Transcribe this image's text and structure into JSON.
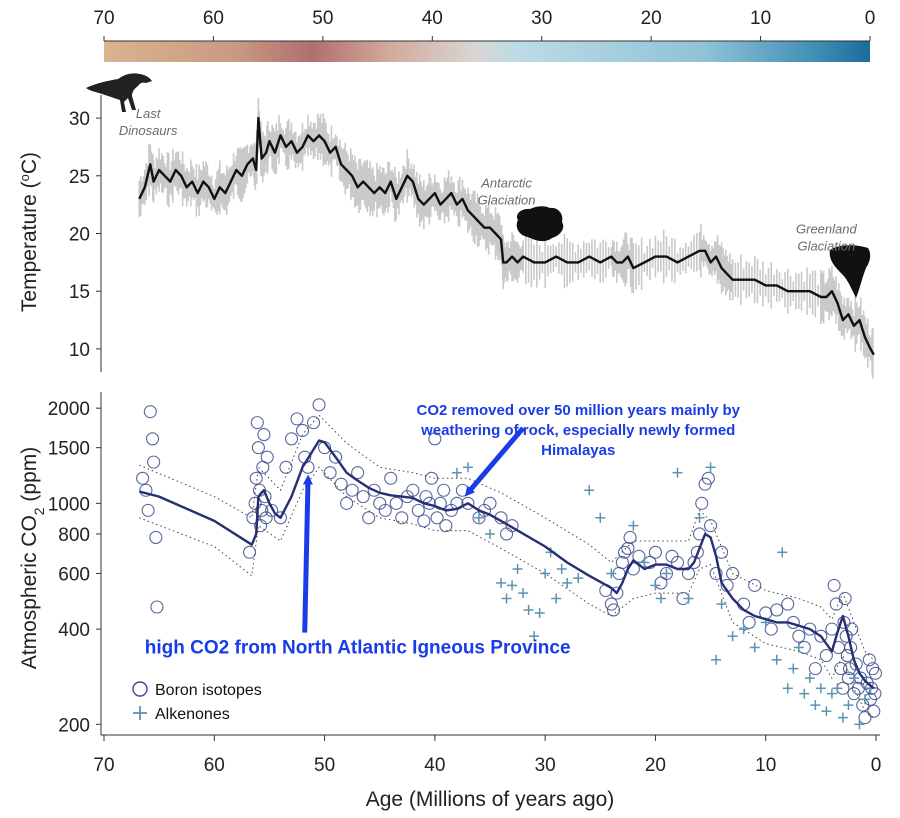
{
  "colorbar": {
    "ticks": [
      "70",
      "60",
      "50",
      "40",
      "30",
      "20",
      "10",
      "0"
    ],
    "tick_values": [
      70,
      60,
      50,
      40,
      30,
      20,
      10,
      0
    ],
    "gradient": [
      {
        "age": 70,
        "color": "#d9b48f"
      },
      {
        "age": 58,
        "color": "#c99a82"
      },
      {
        "age": 51,
        "color": "#b06f6f"
      },
      {
        "age": 44,
        "color": "#d3a99a"
      },
      {
        "age": 36,
        "color": "#d8d6d4"
      },
      {
        "age": 32,
        "color": "#bcdbe6"
      },
      {
        "age": 15,
        "color": "#8fc2d6"
      },
      {
        "age": 5,
        "color": "#3f8fb6"
      },
      {
        "age": 0,
        "color": "#1d6b9a"
      }
    ]
  },
  "chart_data": [
    {
      "type": "line",
      "ylabel": "Temperature (°C)",
      "ylabel_main": "Temperature (",
      "ylabel_sup": "o",
      "ylabel_tail": "C)",
      "xlim": [
        70,
        0
      ],
      "ylim": [
        8,
        32
      ],
      "yticks": [
        10,
        15,
        20,
        25,
        30
      ],
      "ytick_labels": [
        "10",
        "15",
        "20",
        "25",
        "30"
      ],
      "colors": {
        "line": "#111111",
        "band": "#c9c9c9"
      },
      "series": [
        {
          "x": [
            66.8,
            66.3,
            65.8,
            65.5,
            65.0,
            64.5,
            64.0,
            63.5,
            63.0,
            62.5,
            62.0,
            61.5,
            61.0,
            60.5,
            60.0,
            59.5,
            59.0,
            58.5,
            58.0,
            57.5,
            57.0,
            56.5,
            56.2,
            56.0,
            55.7,
            55.3,
            55.0,
            54.5,
            54.0,
            53.5,
            53.0,
            52.5,
            52.0,
            51.5,
            51.0,
            50.5,
            50.0,
            49.5,
            49.0,
            48.5,
            48.0,
            47.5,
            47.0,
            46.5,
            46.0,
            45.5,
            45.0,
            44.5,
            44.0,
            43.5,
            43.0,
            42.5,
            42.0,
            41.5,
            41.0,
            40.5,
            40.0,
            39.5,
            39.0,
            38.5,
            38.0,
            37.5,
            37.0,
            36.5,
            36.0,
            35.5,
            35.0,
            34.5,
            34.0,
            33.8,
            33.5,
            33.0,
            32.5,
            32.0,
            31.0,
            30.0,
            29.0,
            28.0,
            27.0,
            26.0,
            25.0,
            24.0,
            23.5,
            23.0,
            22.5,
            22.0,
            21.0,
            20.0,
            19.0,
            18.0,
            17.0,
            16.0,
            15.5,
            15.0,
            14.5,
            14.0,
            13.5,
            13.0,
            12.0,
            11.0,
            10.0,
            9.0,
            8.0,
            7.0,
            6.0,
            5.0,
            4.5,
            4.0,
            3.5,
            3.0,
            2.5,
            2.0,
            1.5,
            1.0,
            0.5,
            0.2
          ],
          "y": [
            23.0,
            24.0,
            26.0,
            24.5,
            25.5,
            25.0,
            24.5,
            25.5,
            25.0,
            24.0,
            24.5,
            23.5,
            24.5,
            24.0,
            23.0,
            24.0,
            23.5,
            24.5,
            25.5,
            25.0,
            26.0,
            26.5,
            25.5,
            30.0,
            26.5,
            27.0,
            28.0,
            27.0,
            28.5,
            27.5,
            28.0,
            27.0,
            27.5,
            28.5,
            28.0,
            28.5,
            28.0,
            27.0,
            27.5,
            26.0,
            25.5,
            25.0,
            24.0,
            24.5,
            24.0,
            23.5,
            24.0,
            23.5,
            24.5,
            23.0,
            24.0,
            25.0,
            24.5,
            23.0,
            22.5,
            23.0,
            23.5,
            22.5,
            23.0,
            23.5,
            22.5,
            23.0,
            22.0,
            21.5,
            21.0,
            20.5,
            20.5,
            20.0,
            19.5,
            17.5,
            17.5,
            18.0,
            17.5,
            18.0,
            17.5,
            17.5,
            18.0,
            17.5,
            17.5,
            18.0,
            17.5,
            18.0,
            17.5,
            17.5,
            18.0,
            17.0,
            17.5,
            18.0,
            18.0,
            17.5,
            18.0,
            18.5,
            18.5,
            17.5,
            18.0,
            17.0,
            16.5,
            16.0,
            16.0,
            16.0,
            15.5,
            15.5,
            15.0,
            15.0,
            15.0,
            14.5,
            14.5,
            15.0,
            14.0,
            12.5,
            13.0,
            12.0,
            12.5,
            11.0,
            10.0,
            9.5
          ]
        }
      ],
      "annotations": [
        {
          "lines": [
            "Last",
            "Dinosaurs"
          ],
          "x": 66.0,
          "y": 30.0
        },
        {
          "lines": [
            "Antarctic",
            "Glaciation"
          ],
          "x": 33.5,
          "y": 24.0
        },
        {
          "lines": [
            "Greenland",
            "Glaciation"
          ],
          "x": 4.5,
          "y": 20.0
        }
      ]
    },
    {
      "type": "scatter",
      "ylabel_main": "Atmospheric CO",
      "ylabel_sub": "2",
      "ylabel_tail": " (ppm)",
      "xlabel": "Age (Millions of years ago)",
      "xlim": [
        70,
        0
      ],
      "ylim": [
        185,
        2250
      ],
      "yscale": "log",
      "xticks": [
        70,
        60,
        50,
        40,
        30,
        20,
        10,
        0
      ],
      "xtick_labels": [
        "70",
        "60",
        "50",
        "40",
        "30",
        "20",
        "10",
        "0"
      ],
      "yticks": [
        200,
        400,
        600,
        800,
        1000,
        1500,
        2000
      ],
      "ytick_labels": [
        "200",
        "400",
        "600",
        "800",
        "1000",
        "1500",
        "2000"
      ],
      "colors": {
        "boron": "#3a4a8c",
        "alkenones": "#5b93b0",
        "fit": "#262f73",
        "band": "#444444"
      },
      "series": [
        {
          "name": "Boron isotopes",
          "marker": "circle",
          "x": [
            66.5,
            66.2,
            66.0,
            65.8,
            65.6,
            65.5,
            65.3,
            65.2,
            56.8,
            56.5,
            56.3,
            56.2,
            56.1,
            56.0,
            55.9,
            55.8,
            55.7,
            55.6,
            55.5,
            55.4,
            55.3,
            55.2,
            54.8,
            54.0,
            53.5,
            53.0,
            52.5,
            52.0,
            51.8,
            51.5,
            51.0,
            50.5,
            50.0,
            49.5,
            49.0,
            48.5,
            48.0,
            47.5,
            47.0,
            46.5,
            46.0,
            45.5,
            45.0,
            44.5,
            44.0,
            43.5,
            43.0,
            42.5,
            42.0,
            41.5,
            41.0,
            40.8,
            40.5,
            40.3,
            40.0,
            39.8,
            39.5,
            39.2,
            39.0,
            38.5,
            38.0,
            37.5,
            37.0,
            36.0,
            35.5,
            35.0,
            34.0,
            33.5,
            33.0,
            24.5,
            24.0,
            23.8,
            23.5,
            23.3,
            23.0,
            22.8,
            22.5,
            22.3,
            22.0,
            21.5,
            20.5,
            20.0,
            19.5,
            19.0,
            18.5,
            18.0,
            17.5,
            17.0,
            16.5,
            16.2,
            16.0,
            15.8,
            15.5,
            15.2,
            15.0,
            14.5,
            14.0,
            13.5,
            13.0,
            12.0,
            11.5,
            11.0,
            10.0,
            9.5,
            9.0,
            8.0,
            7.5,
            7.0,
            6.5,
            6.0,
            5.5,
            5.0,
            4.5,
            4.0,
            3.8,
            3.6,
            3.4,
            3.2,
            3.0,
            2.9,
            2.8,
            2.7,
            2.6,
            2.5,
            2.4,
            2.3,
            2.2,
            2.0,
            1.8,
            1.6,
            1.4,
            1.2,
            1.0,
            0.8,
            0.6,
            0.5,
            0.4,
            0.3,
            0.2,
            0.1,
            0.05
          ],
          "y": [
            1200,
            1100,
            950,
            1950,
            1600,
            1350,
            780,
            470,
            700,
            900,
            1000,
            1200,
            1800,
            1500,
            1100,
            850,
            950,
            1300,
            1650,
            1050,
            900,
            1400,
            950,
            900,
            1300,
            1600,
            1850,
            1700,
            1400,
            1300,
            1800,
            2050,
            1500,
            1250,
            1400,
            1150,
            1000,
            1100,
            1250,
            1050,
            900,
            1100,
            1000,
            950,
            1200,
            1000,
            900,
            1050,
            1100,
            950,
            880,
            1050,
            1000,
            1200,
            1600,
            900,
            1000,
            1100,
            850,
            950,
            1000,
            1100,
            1000,
            900,
            950,
            1000,
            900,
            800,
            850,
            530,
            480,
            460,
            520,
            600,
            650,
            700,
            720,
            780,
            620,
            680,
            650,
            700,
            560,
            600,
            680,
            650,
            500,
            600,
            650,
            700,
            800,
            1000,
            1150,
            1200,
            850,
            600,
            700,
            550,
            600,
            480,
            420,
            550,
            450,
            400,
            460,
            480,
            420,
            380,
            350,
            400,
            300,
            380,
            330,
            400,
            550,
            480,
            350,
            300,
            260,
            420,
            500,
            380,
            330,
            280,
            300,
            350,
            400,
            250,
            310,
            260,
            280,
            230,
            210,
            270,
            320,
            240,
            260,
            300,
            220,
            250,
            290
          ]
        },
        {
          "name": "Alkenones",
          "marker": "plus",
          "x": [
            38.0,
            37.0,
            36.0,
            35.0,
            34.0,
            33.5,
            33.0,
            32.5,
            32.0,
            31.5,
            31.0,
            30.5,
            30.0,
            29.5,
            29.0,
            28.5,
            28.0,
            27.0,
            26.0,
            25.0,
            24.0,
            22.0,
            21.0,
            20.0,
            19.5,
            19.0,
            18.0,
            17.0,
            16.0,
            15.0,
            14.5,
            14.0,
            13.0,
            12.0,
            11.0,
            10.0,
            9.0,
            8.5,
            8.0,
            7.5,
            7.0,
            6.5,
            6.0,
            5.5,
            5.0,
            4.5,
            4.0,
            3.5,
            3.0,
            2.5,
            2.0,
            1.5,
            1.0,
            0.5
          ],
          "y": [
            1250,
            1300,
            900,
            800,
            560,
            500,
            550,
            620,
            520,
            460,
            380,
            450,
            600,
            700,
            500,
            620,
            560,
            580,
            1100,
            900,
            600,
            850,
            650,
            550,
            500,
            600,
            1250,
            500,
            900,
            1300,
            320,
            480,
            380,
            400,
            350,
            420,
            320,
            700,
            260,
            300,
            350,
            250,
            280,
            230,
            260,
            220,
            250,
            260,
            210,
            230,
            280,
            200,
            240,
            260
          ]
        },
        {
          "name": "fit",
          "role": "lowess",
          "x": [
            66.8,
            65.0,
            60.0,
            56.6,
            56.2,
            56.0,
            55.5,
            55.0,
            54.5,
            54.0,
            53.0,
            52.0,
            51.0,
            50.5,
            50.0,
            49.0,
            48.0,
            47.0,
            46.0,
            45.0,
            44.0,
            43.0,
            42.0,
            41.0,
            40.0,
            39.0,
            38.0,
            37.0,
            36.0,
            35.0,
            34.0,
            33.0,
            30.0,
            28.0,
            26.0,
            24.0,
            23.5,
            23.0,
            22.5,
            22.0,
            21.5,
            21.0,
            20.0,
            19.0,
            18.0,
            17.0,
            16.5,
            16.0,
            15.5,
            15.0,
            14.5,
            14.0,
            13.0,
            12.0,
            11.0,
            10.0,
            9.0,
            8.0,
            7.0,
            6.0,
            5.0,
            4.0,
            3.5,
            3.0,
            2.5,
            2.0,
            1.5,
            1.0,
            0.5,
            0.2
          ],
          "y": [
            1090,
            1050,
            880,
            740,
            800,
            1050,
            1100,
            1000,
            930,
            900,
            1050,
            1300,
            1480,
            1580,
            1560,
            1400,
            1250,
            1180,
            1120,
            1080,
            1060,
            1050,
            1040,
            1000,
            980,
            950,
            960,
            1000,
            950,
            920,
            880,
            840,
            730,
            650,
            590,
            540,
            520,
            560,
            620,
            660,
            640,
            620,
            640,
            640,
            620,
            620,
            650,
            720,
            800,
            780,
            680,
            560,
            500,
            460,
            440,
            430,
            420,
            420,
            410,
            400,
            380,
            340,
            390,
            440,
            380,
            320,
            290,
            275,
            265,
            260
          ]
        },
        {
          "name": "upper",
          "role": "interval",
          "x": [
            66.8,
            60.0,
            56.6,
            56.0,
            54.0,
            52.0,
            50.5,
            48.0,
            45.0,
            42.0,
            40.0,
            37.0,
            34.0,
            30.0,
            26.0,
            24.0,
            22.0,
            20.0,
            17.0,
            16.0,
            15.0,
            13.0,
            10.0,
            7.0,
            5.0,
            4.0,
            3.0,
            2.0,
            1.0,
            0.2
          ],
          "y": [
            1320,
            1050,
            900,
            1300,
            1100,
            1650,
            1900,
            1550,
            1300,
            1250,
            1200,
            1200,
            1080,
            900,
            740,
            650,
            760,
            760,
            760,
            950,
            880,
            600,
            530,
            500,
            470,
            430,
            520,
            420,
            340,
            320
          ]
        },
        {
          "name": "lower",
          "role": "interval",
          "x": [
            66.8,
            60.0,
            56.6,
            56.0,
            54.0,
            52.0,
            50.5,
            48.0,
            45.0,
            42.0,
            40.0,
            37.0,
            34.0,
            30.0,
            26.0,
            24.0,
            22.0,
            20.0,
            17.0,
            16.0,
            15.0,
            13.0,
            10.0,
            7.0,
            5.0,
            4.0,
            3.0,
            2.0,
            1.0,
            0.2
          ],
          "y": [
            900,
            730,
            590,
            850,
            760,
            1100,
            1300,
            1050,
            900,
            860,
            820,
            820,
            720,
            600,
            480,
            440,
            500,
            520,
            520,
            620,
            640,
            420,
            360,
            340,
            320,
            280,
            330,
            260,
            220,
            210
          ]
        }
      ],
      "annotations": [
        {
          "lines": [
            "CO2 removed over 50 million years mainly by",
            "weathering of rock, especially newly formed",
            "Himalayas"
          ],
          "x": 27.0,
          "y": 1900
        },
        {
          "lines": [
            "high CO2 from North Atlantic Igneous Province"
          ],
          "x": 47.0,
          "y": 335
        }
      ],
      "arrows": [
        {
          "from": [
            32.0,
            1730
          ],
          "to": [
            37.0,
            1080
          ]
        },
        {
          "from": [
            51.8,
            390
          ],
          "to": [
            51.5,
            1190
          ]
        }
      ]
    }
  ]
}
